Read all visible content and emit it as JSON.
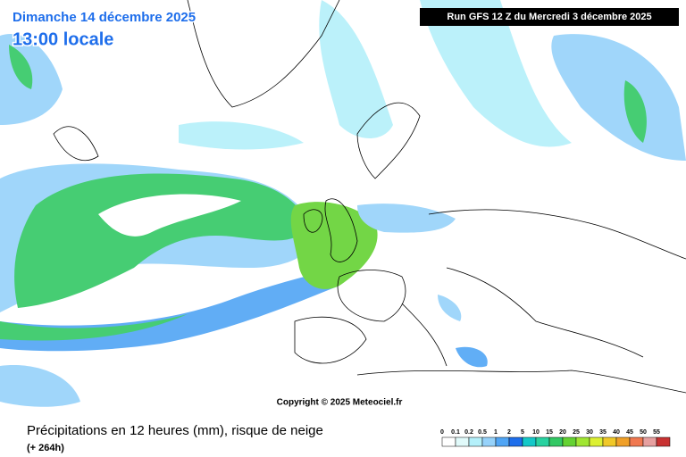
{
  "header": {
    "date": "Dimanche 14 décembre 2025",
    "time": "13:00 locale",
    "run": "Run GFS 12 Z du Mercredi 3 décembre 2025"
  },
  "copyright": "Copyright © 2025 Meteociel.fr",
  "footer": {
    "title": "Précipitations en 12 heures (mm), risque de neige",
    "lead": "(+ 264h)"
  },
  "legend": {
    "levels": [
      0,
      0.1,
      0.2,
      0.5,
      1,
      2,
      5,
      10,
      15,
      20,
      25,
      30,
      35,
      40,
      45,
      50,
      55
    ],
    "colors": [
      "#ffffff",
      "#e1fafa",
      "#b4f0fa",
      "#96d2fa",
      "#50a5f5",
      "#1e6eeb",
      "#14c8c8",
      "#28d2a0",
      "#32c864",
      "#64d232",
      "#a0e632",
      "#dcf032",
      "#f0c828",
      "#f0a028",
      "#f07850",
      "#e6a0a0",
      "#c83232"
    ]
  }
}
